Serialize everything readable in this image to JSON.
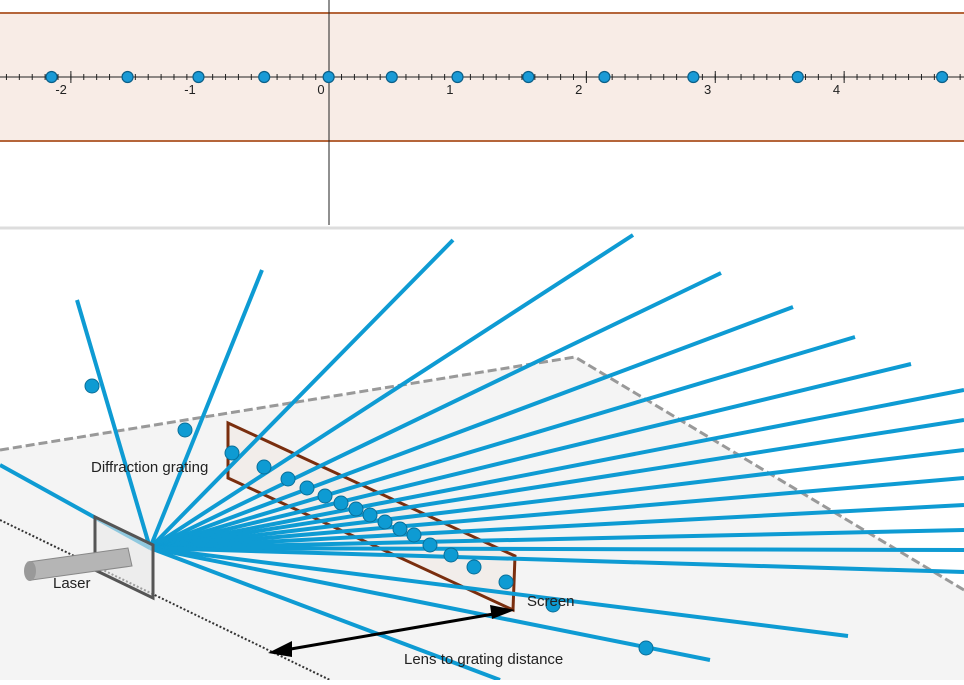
{
  "number_line": {
    "xlim": [
      -2.55,
      4.93
    ],
    "ticks": [
      -2,
      -1,
      0,
      1,
      2,
      3,
      4
    ],
    "points": [
      -2.15,
      -1.56,
      -1.01,
      -0.5,
      0,
      0.49,
      1,
      1.55,
      2.14,
      2.83,
      3.64,
      4.76
    ]
  },
  "scene": {
    "grating_label": "Diffraction grating",
    "laser_label": "Laser",
    "screen_label": "Screen",
    "distance_label": "Lens to grating distance"
  }
}
